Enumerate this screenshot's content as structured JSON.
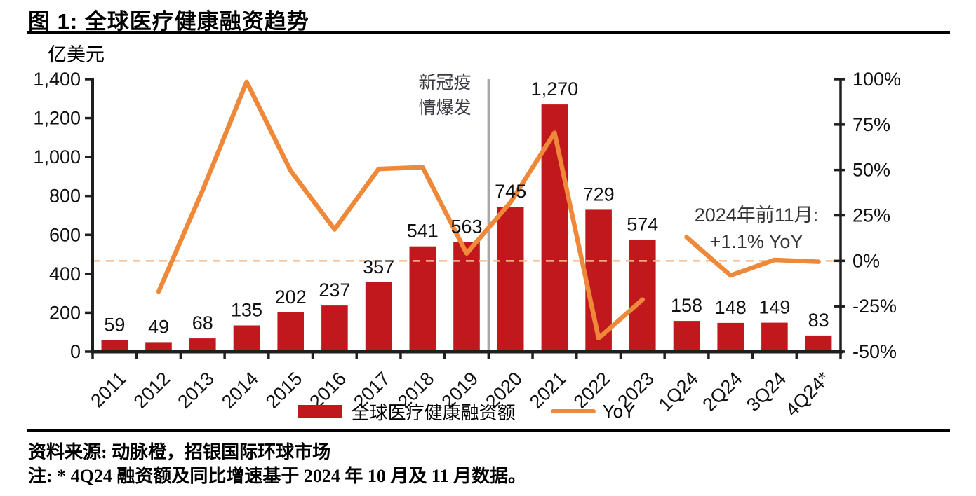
{
  "title": "图 1: 全球医疗健康融资趋势",
  "chart_data": {
    "type": "bar+line",
    "title": "全球医疗健康融资趋势",
    "unit_label": "亿美元",
    "grid": false,
    "legend_position": "bottom-center",
    "categories": [
      "2011",
      "2012",
      "2013",
      "2014",
      "2015",
      "2016",
      "2017",
      "2018",
      "2019",
      "2020",
      "2021",
      "2022",
      "2023",
      "1Q24",
      "2Q24",
      "3Q24",
      "4Q24*"
    ],
    "bar_series": {
      "name": "全球医疗健康融资额",
      "color": "#c1181d",
      "values": [
        59,
        49,
        68,
        135,
        202,
        237,
        357,
        541,
        563,
        745,
        1270,
        729,
        574,
        158,
        148,
        149,
        83
      ],
      "labels": [
        "59",
        "49",
        "68",
        "135",
        "202",
        "237",
        "357",
        "541",
        "563",
        "745",
        "1,270",
        "729",
        "574",
        "158",
        "148",
        "149",
        "83"
      ]
    },
    "line_series": {
      "name": "YoY",
      "color": "#f0883a",
      "unit": "%",
      "segments": [
        {
          "start_index": 1,
          "values": [
            -16.9,
            38.8,
            98.5,
            49.6,
            17.3,
            50.6,
            51.5,
            4.1,
            32.3,
            70.5,
            -42.6,
            -21.3
          ]
        },
        {
          "start_index": 13,
          "values": [
            13,
            -8,
            0.5,
            -0.5
          ]
        }
      ]
    },
    "left_axis": {
      "min": 0,
      "max": 1400,
      "ticks": [
        {
          "label": "1,400",
          "value": 1400
        },
        {
          "label": "1,200",
          "value": 1200
        },
        {
          "label": "1,000",
          "value": 1000
        },
        {
          "label": "800",
          "value": 800
        },
        {
          "label": "600",
          "value": 600
        },
        {
          "label": "400",
          "value": 400
        },
        {
          "label": "200",
          "value": 200
        },
        {
          "label": "0",
          "value": 0
        }
      ]
    },
    "right_axis": {
      "min": -50,
      "max": 100,
      "ticks": [
        {
          "label": "100%",
          "value": 100
        },
        {
          "label": "75%",
          "value": 75
        },
        {
          "label": "50%",
          "value": 50
        },
        {
          "label": "25%",
          "value": 25
        },
        {
          "label": "0%",
          "value": 0
        },
        {
          "label": "-25%",
          "value": -25
        },
        {
          "label": "-50%",
          "value": -50
        }
      ]
    },
    "zero_dash_line": {
      "value_pct": 0,
      "color": "#f7be8c"
    },
    "covid_divider": {
      "boundary_index": 9,
      "color": "#a8a8a8"
    }
  },
  "annotations": {
    "covid": {
      "line1": "新冠疫",
      "line2": "情爆发"
    },
    "ytd": {
      "line1": "2024年前11月:",
      "line2": "+1.1% YoY"
    }
  },
  "legend": {
    "bar_label": "全球医疗健康融资额",
    "line_label": "YoY"
  },
  "footer": {
    "source": "资料来源: 动脉橙，招银国际环球市场",
    "note": "注: * 4Q24 融资额及同比增速基于 2024 年 10 月及 11 月数据。"
  }
}
